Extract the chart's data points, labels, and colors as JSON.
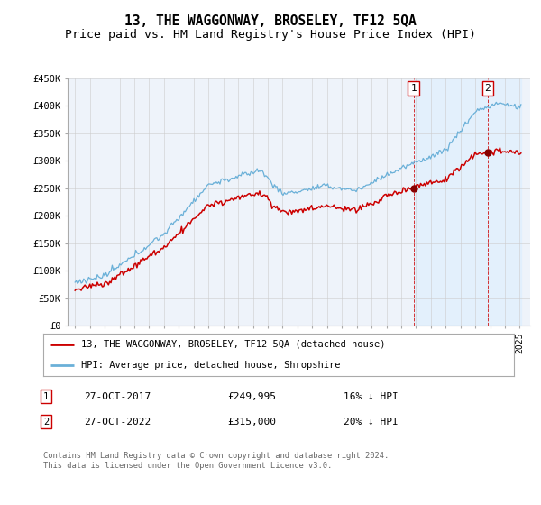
{
  "title": "13, THE WAGGONWAY, BROSELEY, TF12 5QA",
  "subtitle": "Price paid vs. HM Land Registry's House Price Index (HPI)",
  "legend_line1": "13, THE WAGGONWAY, BROSELEY, TF12 5QA (detached house)",
  "legend_line2": "HPI: Average price, detached house, Shropshire",
  "footnote": "Contains HM Land Registry data © Crown copyright and database right 2024.\nThis data is licensed under the Open Government Licence v3.0.",
  "sale1_date": "27-OCT-2017",
  "sale1_price": "£249,995",
  "sale1_hpi": "16% ↓ HPI",
  "sale1_year": 2017.83,
  "sale1_value": 249995,
  "sale2_date": "27-OCT-2022",
  "sale2_price": "£315,000",
  "sale2_hpi": "20% ↓ HPI",
  "sale2_year": 2022.83,
  "sale2_value": 315000,
  "hpi_color": "#6ab0d8",
  "hpi_fill_color": "#ddeeff",
  "price_color": "#cc0000",
  "annotation_color": "#cc0000",
  "grid_color": "#cccccc",
  "background_color": "#ffffff",
  "plot_bg_color": "#eef3fa",
  "ylim": [
    0,
    450000
  ],
  "yticks": [
    0,
    50000,
    100000,
    150000,
    200000,
    250000,
    300000,
    350000,
    400000,
    450000
  ],
  "title_fontsize": 10.5,
  "subtitle_fontsize": 9.5
}
